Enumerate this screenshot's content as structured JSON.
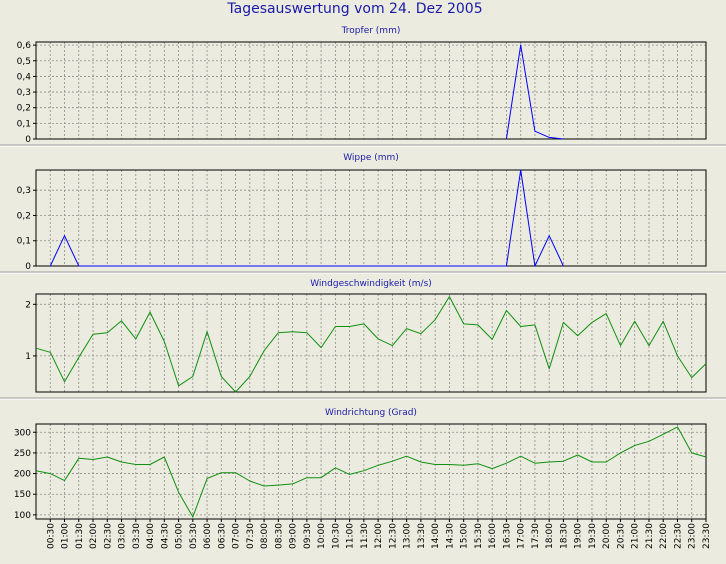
{
  "title": "Tagesauswertung vom 24. Dez 2005",
  "colors": {
    "background": "#ecebdf",
    "title": "#1a1aa8",
    "grid": "#8c8c8c",
    "frame": "#000000",
    "separator": "#9a9a9a",
    "blue_series": "#0000ff",
    "green_series": "#109010"
  },
  "x_labels": [
    "00:30",
    "01:00",
    "01:30",
    "02:00",
    "02:30",
    "03:00",
    "03:30",
    "04:00",
    "04:30",
    "05:00",
    "05:30",
    "06:00",
    "06:30",
    "07:00",
    "07:30",
    "08:00",
    "08:30",
    "09:00",
    "09:30",
    "10:00",
    "10:30",
    "11:00",
    "11:30",
    "12:00",
    "12:30",
    "13:00",
    "13:30",
    "14:00",
    "14:30",
    "15:00",
    "15:30",
    "16:00",
    "16:30",
    "17:00",
    "17:30",
    "18:00",
    "18:30",
    "19:00",
    "19:30",
    "20:00",
    "20:30",
    "21:00",
    "21:30",
    "22:00",
    "22:30",
    "23:00",
    "23:30"
  ],
  "chart_data": [
    {
      "type": "line",
      "title": "Tropfer (mm)",
      "ylim": [
        0,
        0.62
      ],
      "yticks": [
        "0",
        "0,1",
        "0,2",
        "0,3",
        "0,4",
        "0,5",
        "0,6"
      ],
      "ytick_values": [
        0,
        0.1,
        0.2,
        0.3,
        0.4,
        0.5,
        0.6
      ],
      "grid": true,
      "color": "blue_series",
      "x": [
        16.5,
        17.0,
        17.5,
        18.0,
        18.5
      ],
      "values": [
        0,
        0.6,
        0.05,
        0.01,
        0
      ]
    },
    {
      "type": "line",
      "title": "Wippe (mm)",
      "ylim": [
        0,
        0.38
      ],
      "yticks": [
        "0",
        "0,1",
        "0,2",
        "0,3"
      ],
      "ytick_values": [
        0,
        0.1,
        0.2,
        0.3
      ],
      "grid": true,
      "color": "blue_series",
      "x": [
        0.5,
        1.0,
        1.5,
        16.5,
        17.0,
        17.5,
        18.0,
        18.5
      ],
      "values": [
        0,
        0.12,
        0,
        0,
        0.38,
        0,
        0.12,
        0
      ]
    },
    {
      "type": "line",
      "title": "Windgeschwindigkeit (m/s)",
      "ylim": [
        0.3,
        2.2
      ],
      "yticks": [
        "1",
        "2"
      ],
      "ytick_values": [
        1,
        2
      ],
      "grid": true,
      "color": "green_series",
      "x": [
        0.0,
        0.5,
        1.0,
        1.5,
        2.0,
        2.5,
        3.0,
        3.5,
        4.0,
        4.5,
        5.0,
        5.5,
        6.0,
        6.5,
        7.0,
        7.5,
        8.0,
        8.5,
        9.0,
        9.5,
        10.0,
        10.5,
        11.0,
        11.5,
        12.0,
        12.5,
        13.0,
        13.5,
        14.0,
        14.5,
        15.0,
        15.5,
        16.0,
        16.5,
        17.0,
        17.5,
        18.0,
        18.5,
        19.0,
        19.5,
        20.0,
        20.5,
        21.0,
        21.5,
        22.0,
        22.5,
        23.0,
        23.5
      ],
      "values": [
        1.15,
        1.07,
        0.5,
        0.97,
        1.42,
        1.45,
        1.68,
        1.33,
        1.85,
        1.28,
        0.42,
        0.6,
        1.47,
        0.6,
        0.3,
        0.6,
        1.1,
        1.45,
        1.47,
        1.45,
        1.16,
        1.57,
        1.57,
        1.62,
        1.33,
        1.2,
        1.53,
        1.43,
        1.7,
        2.15,
        1.62,
        1.6,
        1.32,
        1.88,
        1.57,
        1.6,
        0.75,
        1.65,
        1.39,
        1.65,
        1.82,
        1.2,
        1.67,
        1.2,
        1.67,
        1.0,
        0.58,
        0.85
      ]
    },
    {
      "type": "line",
      "title": "Windrichtung (Grad)",
      "ylim": [
        90,
        320
      ],
      "yticks": [
        "100",
        "150",
        "200",
        "250",
        "300"
      ],
      "ytick_values": [
        100,
        150,
        200,
        250,
        300
      ],
      "grid": true,
      "color": "green_series",
      "x": [
        0.0,
        0.5,
        1.0,
        1.5,
        2.0,
        2.5,
        3.0,
        3.5,
        4.0,
        4.5,
        5.0,
        5.5,
        6.0,
        6.5,
        7.0,
        7.5,
        8.0,
        8.5,
        9.0,
        9.5,
        10.0,
        10.5,
        11.0,
        11.5,
        12.0,
        12.5,
        13.0,
        13.5,
        14.0,
        14.5,
        15.0,
        15.5,
        16.0,
        16.5,
        17.0,
        17.5,
        18.0,
        18.5,
        19.0,
        19.5,
        20.0,
        20.5,
        21.0,
        21.5,
        22.0,
        22.5,
        23.0,
        23.5
      ],
      "values": [
        207,
        200,
        183,
        237,
        234,
        240,
        228,
        222,
        222,
        240,
        155,
        95,
        188,
        202,
        202,
        182,
        170,
        172,
        175,
        190,
        190,
        214,
        198,
        207,
        220,
        230,
        242,
        228,
        222,
        222,
        220,
        224,
        212,
        225,
        242,
        225,
        228,
        230,
        245,
        228,
        228,
        250,
        268,
        278,
        295,
        313,
        250,
        240
      ]
    }
  ]
}
